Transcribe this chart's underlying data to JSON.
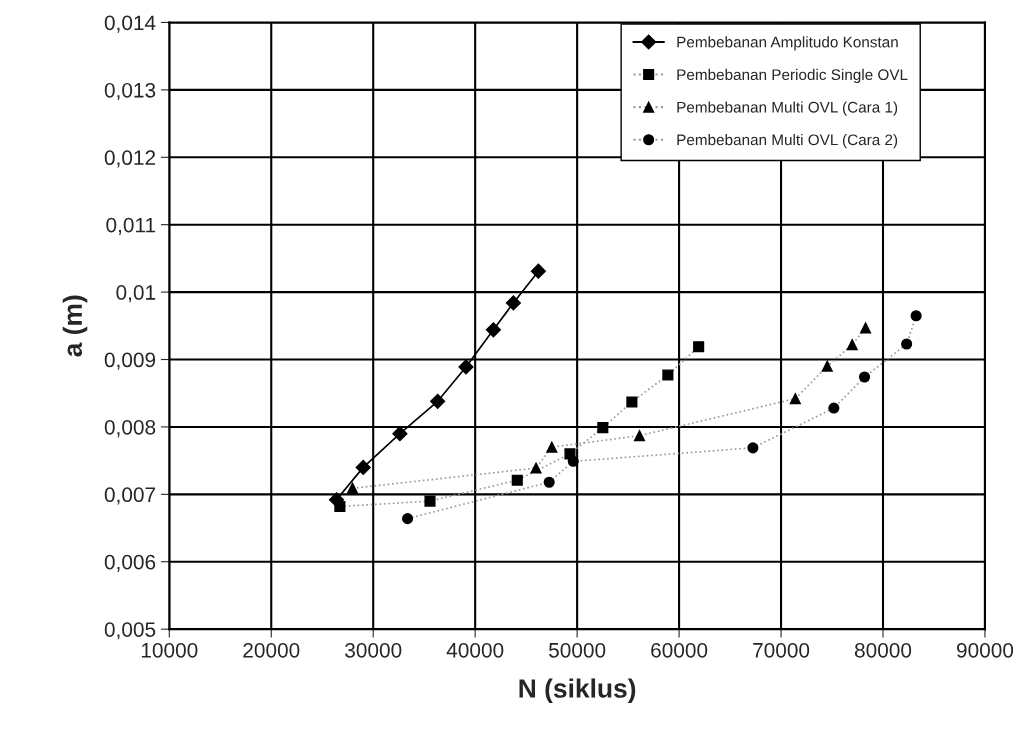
{
  "chart_data": {
    "type": "line",
    "xlabel": "N (siklus)",
    "ylabel": "a (m)",
    "xlim": [
      10000,
      90000
    ],
    "xticks": [
      10000,
      20000,
      30000,
      40000,
      50000,
      60000,
      70000,
      80000,
      90000
    ],
    "ylim": [
      0.005,
      0.014
    ],
    "yticks": [
      {
        "value": 0.005,
        "label": "0,005"
      },
      {
        "value": 0.006,
        "label": "0,006"
      },
      {
        "value": 0.007,
        "label": "0,007"
      },
      {
        "value": 0.008,
        "label": "0,008"
      },
      {
        "value": 0.009,
        "label": "0,009"
      },
      {
        "value": 0.01,
        "label": "0,01"
      },
      {
        "value": 0.011,
        "label": "0,011"
      },
      {
        "value": 0.012,
        "label": "0,012"
      },
      {
        "value": 0.013,
        "label": "0,013"
      },
      {
        "value": 0.014,
        "label": "0,014"
      }
    ],
    "grid": true,
    "legend": "top right",
    "series": [
      {
        "name": "Pembebanan Amplitudo Konstan",
        "color": "#000000",
        "marker": "diamond",
        "line_style": "solid",
        "x": [
          26400,
          29020,
          32620,
          36320,
          39100,
          41790,
          43750,
          46200
        ],
        "values": [
          0.00692,
          0.0074,
          0.0079,
          0.00838,
          0.00889,
          0.00944,
          0.00984,
          0.01031
        ]
      },
      {
        "name": "Pembebanan Periodic Single OVL",
        "color": "#000000",
        "marker": "square",
        "line_style": "dotted",
        "x": [
          26730,
          35570,
          44130,
          49300,
          52520,
          55370,
          58900,
          61920
        ],
        "values": [
          0.00682,
          0.0069,
          0.00721,
          0.0076,
          0.00799,
          0.00837,
          0.00877,
          0.00919
        ]
      },
      {
        "name": "Pembebanan Multi OVL (Cara 1)",
        "color": "#000000",
        "marker": "triangle",
        "line_style": "dotted",
        "x": [
          27970,
          45970,
          47520,
          56120,
          71400,
          74530,
          76980,
          78290
        ],
        "values": [
          0.00709,
          0.00739,
          0.0077,
          0.00787,
          0.00842,
          0.0089,
          0.00922,
          0.00947
        ]
      },
      {
        "name": "Pembebanan Multi OVL (Cara 2)",
        "color": "#000000",
        "marker": "circle",
        "line_style": "dotted",
        "x": [
          33370,
          47260,
          49620,
          67240,
          75180,
          78190,
          82320,
          83250
        ],
        "values": [
          0.00664,
          0.00718,
          0.00749,
          0.00769,
          0.00828,
          0.00874,
          0.00923,
          0.00965
        ]
      }
    ]
  }
}
